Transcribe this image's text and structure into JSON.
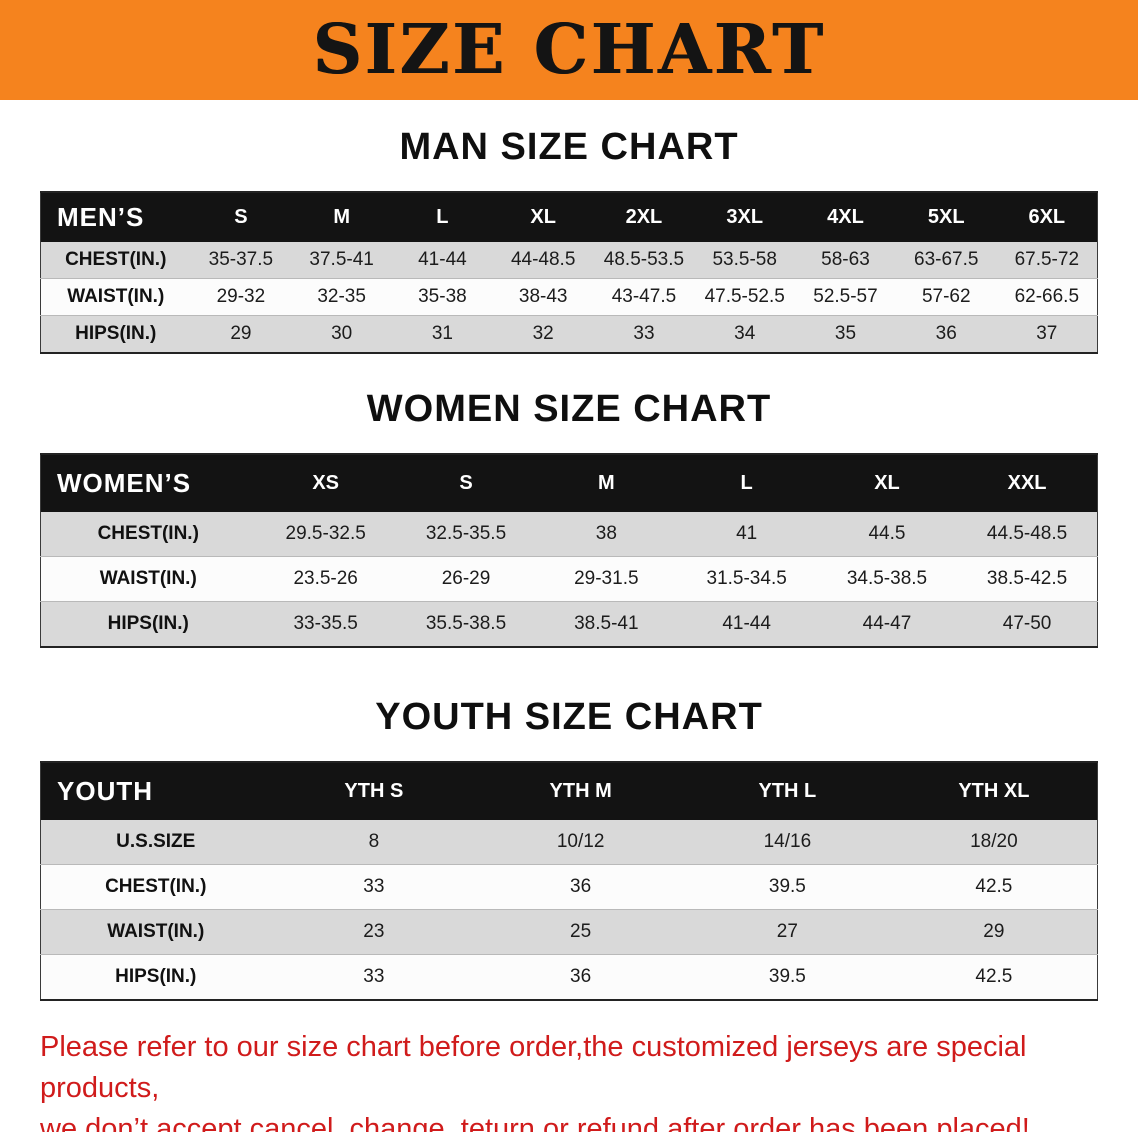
{
  "banner": {
    "title": "SIZE CHART",
    "bg_color": "#f5831e",
    "text_color": "#141414"
  },
  "sections": [
    {
      "heading": "MAN SIZE CHART",
      "table": {
        "label": "MEN’S",
        "columns": [
          "S",
          "M",
          "L",
          "XL",
          "2XL",
          "3XL",
          "4XL",
          "5XL",
          "6XL"
        ],
        "rows": [
          {
            "label": "CHEST(IN.)",
            "values": [
              "35-37.5",
              "37.5-41",
              "41-44",
              "44-48.5",
              "48.5-53.5",
              "53.5-58",
              "58-63",
              "63-67.5",
              "67.5-72"
            ]
          },
          {
            "label": "WAIST(IN.)",
            "values": [
              "29-32",
              "32-35",
              "35-38",
              "38-43",
              "43-47.5",
              "47.5-52.5",
              "52.5-57",
              "57-62",
              "62-66.5"
            ]
          },
          {
            "label": "HIPS(IN.)",
            "values": [
              "29",
              "30",
              "31",
              "32",
              "33",
              "34",
              "35",
              "36",
              "37"
            ]
          }
        ]
      }
    },
    {
      "heading": "WOMEN SIZE CHART",
      "table": {
        "label": "WOMEN’S",
        "columns": [
          "XS",
          "S",
          "M",
          "L",
          "XL",
          "XXL"
        ],
        "rows": [
          {
            "label": "CHEST(IN.)",
            "values": [
              "29.5-32.5",
              "32.5-35.5",
              "38",
              "41",
              "44.5",
              "44.5-48.5"
            ]
          },
          {
            "label": "WAIST(IN.)",
            "values": [
              "23.5-26",
              "26-29",
              "29-31.5",
              "31.5-34.5",
              "34.5-38.5",
              "38.5-42.5"
            ]
          },
          {
            "label": "HIPS(IN.)",
            "values": [
              "33-35.5",
              "35.5-38.5",
              "38.5-41",
              "41-44",
              "44-47",
              "47-50"
            ]
          }
        ]
      }
    },
    {
      "heading": "YOUTH SIZE CHART",
      "table": {
        "label": "YOUTH",
        "columns": [
          "YTH S",
          "YTH M",
          "YTH L",
          "YTH XL"
        ],
        "rows": [
          {
            "label": "U.S.SIZE",
            "values": [
              "8",
              "10/12",
              "14/16",
              "18/20"
            ]
          },
          {
            "label": "CHEST(IN.)",
            "values": [
              "33",
              "36",
              "39.5",
              "42.5"
            ]
          },
          {
            "label": "WAIST(IN.)",
            "values": [
              "23",
              "25",
              "27",
              "29"
            ]
          },
          {
            "label": "HIPS(IN.)",
            "values": [
              "33",
              "36",
              "39.5",
              "42.5"
            ]
          }
        ]
      }
    }
  ],
  "disclaimer": {
    "line1": "Please refer to our size chart before order,the customized jerseys are special products,",
    "line2": "we don’t accept cancel, change, teturn or refund after order has been placed!",
    "text_color": "#d01b1b"
  }
}
